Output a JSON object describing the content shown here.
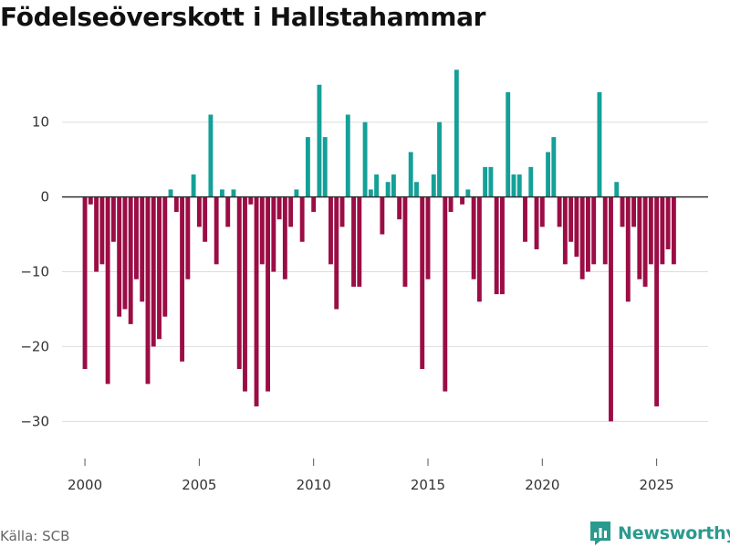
{
  "title": "Födelseöverskott i Hallstahammar",
  "source": "Källa: SCB",
  "brand": {
    "name": "Newsworthy",
    "icon": "bar-chart-logo-icon"
  },
  "colors": {
    "positive": "#14a098",
    "negative": "#9b0d45",
    "grid": "#dddddd",
    "zero_line": "#333333",
    "brand": "#2b9a8e"
  },
  "chart_data": {
    "type": "bar",
    "title": "Födelseöverskott i Hallstahammar",
    "xlabel": "",
    "ylabel": "",
    "frequency": "monthly-quarter",
    "x_range": [
      1999.0,
      2027.25
    ],
    "ylim": [
      -33.5,
      19
    ],
    "x_ticks": [
      2000,
      2005,
      2010,
      2015,
      2020,
      2025
    ],
    "y_ticks": [
      -30,
      -20,
      -10,
      0,
      10
    ],
    "y_tick_labels": [
      "−30",
      "−20",
      "−10",
      "0",
      "10"
    ],
    "x_tick_labels": [
      "2000",
      "2005",
      "2010",
      "2015",
      "2020",
      "2025"
    ],
    "x": [
      2000.0,
      2000.25,
      2000.5,
      2000.75,
      2001.0,
      2001.25,
      2001.5,
      2001.75,
      2002.0,
      2002.25,
      2002.5,
      2002.75,
      2003.0,
      2003.25,
      2003.5,
      2003.75,
      2004.0,
      2004.25,
      2004.5,
      2004.75,
      2005.0,
      2005.25,
      2005.5,
      2005.75,
      2006.0,
      2006.25,
      2006.5,
      2006.75,
      2007.0,
      2007.25,
      2007.5,
      2007.75,
      2008.0,
      2008.25,
      2008.5,
      2008.75,
      2009.0,
      2009.25,
      2009.5,
      2009.75,
      2010.0,
      2010.25,
      2010.5,
      2010.75,
      2011.0,
      2011.25,
      2011.5,
      2011.75,
      2012.0,
      2012.25,
      2012.5,
      2012.75,
      2013.0,
      2013.25,
      2013.5,
      2013.75,
      2014.0,
      2014.25,
      2014.5,
      2014.75,
      2015.0,
      2015.25,
      2015.5,
      2015.75,
      2016.0,
      2016.25,
      2016.5,
      2016.75,
      2017.0,
      2017.25,
      2017.5,
      2017.75,
      2018.0,
      2018.25,
      2018.5,
      2018.75,
      2019.0,
      2019.25,
      2019.5,
      2019.75,
      2020.0,
      2020.25,
      2020.5,
      2020.75,
      2021.0,
      2021.25,
      2021.5,
      2021.75,
      2022.0,
      2022.25,
      2022.5,
      2022.75,
      2023.0,
      2023.25,
      2023.5,
      2023.75,
      2024.0,
      2024.25,
      2024.5,
      2024.75,
      2025.0,
      2025.25,
      2025.5,
      2025.75
    ],
    "values": [
      -23,
      -1,
      -10,
      -9,
      -25,
      -6,
      -16,
      -15,
      -17,
      -11,
      -14,
      -25,
      -20,
      -19,
      -16,
      1,
      -2,
      -22,
      -11,
      3,
      -4,
      -6,
      11,
      -9,
      1,
      -4,
      1,
      -23,
      -26,
      -1,
      -28,
      -9,
      -26,
      -10,
      -3,
      -11,
      -4,
      1,
      -6,
      8,
      -2,
      15,
      8,
      -9,
      -15,
      -4,
      11,
      -12,
      -12,
      10,
      1,
      3,
      -5,
      2,
      3,
      -3,
      -12,
      6,
      2,
      -23,
      -11,
      3,
      10,
      -26,
      -2,
      17,
      -1,
      1,
      -11,
      -14,
      4,
      4,
      -13,
      -13,
      14,
      3,
      3,
      -6,
      4,
      -7,
      -4,
      6,
      8,
      -4,
      -9,
      -6,
      -8,
      -11,
      -10,
      -9,
      14,
      -9,
      -30,
      2,
      -4,
      -14,
      -4,
      -11,
      -12,
      -9,
      -28,
      -9,
      -7,
      -9
    ]
  }
}
